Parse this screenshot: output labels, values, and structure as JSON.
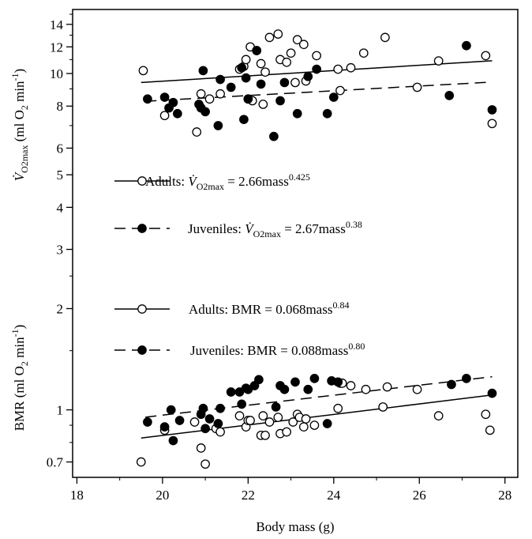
{
  "chart_data": {
    "type": "scatter",
    "xlabel": "Body mass (g)",
    "ylabel_top": "V̇O2max (ml O2 min-1)",
    "ylabel_bottom": "BMR (ml O2 min-1)",
    "x_ticks": [
      18,
      20,
      22,
      24,
      26,
      28
    ],
    "xlim": [
      17.9,
      28.3
    ],
    "ylim": [
      0.63,
      15.5
    ],
    "y_scale": "log",
    "y_ticks": [
      0.7,
      1,
      2,
      3,
      4,
      5,
      6,
      8,
      10,
      12,
      14
    ],
    "legend": [
      {
        "name": "Adults",
        "marker": "open",
        "line": "solid",
        "eq": "Adults: V̇O2max = 2.66mass0.425"
      },
      {
        "name": "Juveniles",
        "marker": "filled",
        "line": "dashed",
        "eq": "Juveniles: V̇O2max = 2.67mass0.38"
      },
      {
        "name": "Adults",
        "marker": "open",
        "line": "solid",
        "eq": "Adults: BMR = 0.068mass0.84"
      },
      {
        "name": "Juveniles",
        "marker": "filled",
        "line": "dashed",
        "eq": "Juveniles: BMR = 0.088mass0.80"
      }
    ],
    "fits": [
      {
        "name": "Adults VO2max",
        "coef": 2.66,
        "exp": 0.425,
        "x_range": [
          19.5,
          27.7
        ],
        "line": "solid"
      },
      {
        "name": "Juveniles VO2max",
        "coef": 2.67,
        "exp": 0.38,
        "x_range": [
          19.6,
          27.7
        ],
        "line": "dashed"
      },
      {
        "name": "Adults BMR",
        "coef": 0.068,
        "exp": 0.84,
        "x_range": [
          19.5,
          27.7
        ],
        "line": "solid"
      },
      {
        "name": "Juveniles BMR",
        "coef": 0.088,
        "exp": 0.8,
        "x_range": [
          19.6,
          27.7
        ],
        "line": "dashed"
      }
    ],
    "series": [
      {
        "name": "Adults VO2max",
        "marker": "open",
        "points": [
          [
            19.55,
            10.2
          ],
          [
            20.05,
            7.5
          ],
          [
            20.8,
            6.7
          ],
          [
            20.9,
            8.7
          ],
          [
            21.1,
            8.4
          ],
          [
            21.35,
            8.7
          ],
          [
            21.8,
            10.3
          ],
          [
            21.9,
            10.5
          ],
          [
            21.95,
            11.0
          ],
          [
            22.0,
            8.4
          ],
          [
            22.05,
            12.0
          ],
          [
            22.1,
            8.3
          ],
          [
            22.2,
            11.7
          ],
          [
            22.3,
            10.7
          ],
          [
            22.35,
            8.1
          ],
          [
            22.4,
            10.1
          ],
          [
            22.5,
            12.8
          ],
          [
            22.7,
            13.1
          ],
          [
            22.75,
            11.0
          ],
          [
            22.9,
            10.8
          ],
          [
            23.0,
            11.5
          ],
          [
            23.1,
            9.4
          ],
          [
            23.15,
            12.6
          ],
          [
            23.3,
            12.2
          ],
          [
            23.35,
            9.5
          ],
          [
            23.6,
            11.3
          ],
          [
            24.1,
            10.3
          ],
          [
            24.4,
            10.4
          ],
          [
            24.7,
            11.5
          ],
          [
            25.2,
            12.8
          ],
          [
            25.95,
            9.1
          ],
          [
            26.45,
            10.9
          ],
          [
            27.55,
            11.3
          ],
          [
            27.7,
            7.1
          ],
          [
            24.15,
            8.9
          ]
        ]
      },
      {
        "name": "Juveniles VO2max",
        "marker": "filled",
        "points": [
          [
            19.65,
            8.4
          ],
          [
            20.05,
            8.5
          ],
          [
            20.15,
            7.9
          ],
          [
            20.25,
            8.2
          ],
          [
            20.35,
            7.6
          ],
          [
            20.85,
            8.1
          ],
          [
            20.9,
            7.9
          ],
          [
            20.95,
            10.2
          ],
          [
            21.0,
            7.7
          ],
          [
            21.3,
            7.0
          ],
          [
            21.35,
            9.6
          ],
          [
            21.6,
            9.1
          ],
          [
            21.85,
            10.4
          ],
          [
            21.9,
            7.3
          ],
          [
            21.95,
            9.7
          ],
          [
            22.0,
            8.4
          ],
          [
            22.2,
            11.7
          ],
          [
            22.3,
            9.3
          ],
          [
            22.6,
            6.5
          ],
          [
            22.75,
            8.3
          ],
          [
            22.85,
            9.4
          ],
          [
            23.15,
            7.6
          ],
          [
            23.4,
            9.8
          ],
          [
            23.6,
            10.3
          ],
          [
            23.85,
            7.6
          ],
          [
            24.0,
            8.5
          ],
          [
            26.7,
            8.6
          ],
          [
            27.1,
            12.1
          ],
          [
            27.7,
            7.8
          ]
        ]
      },
      {
        "name": "Adults BMR",
        "marker": "open",
        "points": [
          [
            19.5,
            0.7
          ],
          [
            20.05,
            0.87
          ],
          [
            20.75,
            0.92
          ],
          [
            20.9,
            0.77
          ],
          [
            21.0,
            0.69
          ],
          [
            21.25,
            0.88
          ],
          [
            21.35,
            0.86
          ],
          [
            21.8,
            0.96
          ],
          [
            21.95,
            0.89
          ],
          [
            22.0,
            0.93
          ],
          [
            22.05,
            0.93
          ],
          [
            22.3,
            0.84
          ],
          [
            22.35,
            0.96
          ],
          [
            22.4,
            0.84
          ],
          [
            22.5,
            0.92
          ],
          [
            22.7,
            0.95
          ],
          [
            22.75,
            0.85
          ],
          [
            22.9,
            0.86
          ],
          [
            23.05,
            0.92
          ],
          [
            23.15,
            0.97
          ],
          [
            23.2,
            0.95
          ],
          [
            23.3,
            0.89
          ],
          [
            23.35,
            0.94
          ],
          [
            23.55,
            0.9
          ],
          [
            24.1,
            1.01
          ],
          [
            24.15,
            1.2
          ],
          [
            24.4,
            1.18
          ],
          [
            24.75,
            1.15
          ],
          [
            25.15,
            1.02
          ],
          [
            25.25,
            1.17
          ],
          [
            25.95,
            1.15
          ],
          [
            26.45,
            0.96
          ],
          [
            27.55,
            0.97
          ],
          [
            27.65,
            0.87
          ],
          [
            24.2,
            1.2
          ]
        ]
      },
      {
        "name": "Juveniles BMR",
        "marker": "filled",
        "points": [
          [
            19.65,
            0.92
          ],
          [
            20.05,
            0.89
          ],
          [
            20.2,
            1.0
          ],
          [
            20.25,
            0.81
          ],
          [
            20.4,
            0.93
          ],
          [
            20.9,
            0.97
          ],
          [
            20.95,
            1.01
          ],
          [
            21.0,
            0.88
          ],
          [
            21.1,
            0.94
          ],
          [
            21.3,
            0.91
          ],
          [
            21.35,
            1.01
          ],
          [
            21.6,
            1.13
          ],
          [
            21.8,
            1.13
          ],
          [
            21.85,
            1.04
          ],
          [
            21.95,
            1.16
          ],
          [
            22.0,
            1.15
          ],
          [
            22.15,
            1.18
          ],
          [
            22.25,
            1.23
          ],
          [
            22.65,
            1.02
          ],
          [
            22.75,
            1.18
          ],
          [
            22.85,
            1.15
          ],
          [
            23.1,
            1.21
          ],
          [
            23.4,
            1.15
          ],
          [
            23.55,
            1.24
          ],
          [
            23.85,
            0.91
          ],
          [
            23.95,
            1.22
          ],
          [
            24.1,
            1.21
          ],
          [
            26.75,
            1.19
          ],
          [
            27.1,
            1.24
          ],
          [
            27.7,
            1.12
          ]
        ]
      }
    ]
  }
}
